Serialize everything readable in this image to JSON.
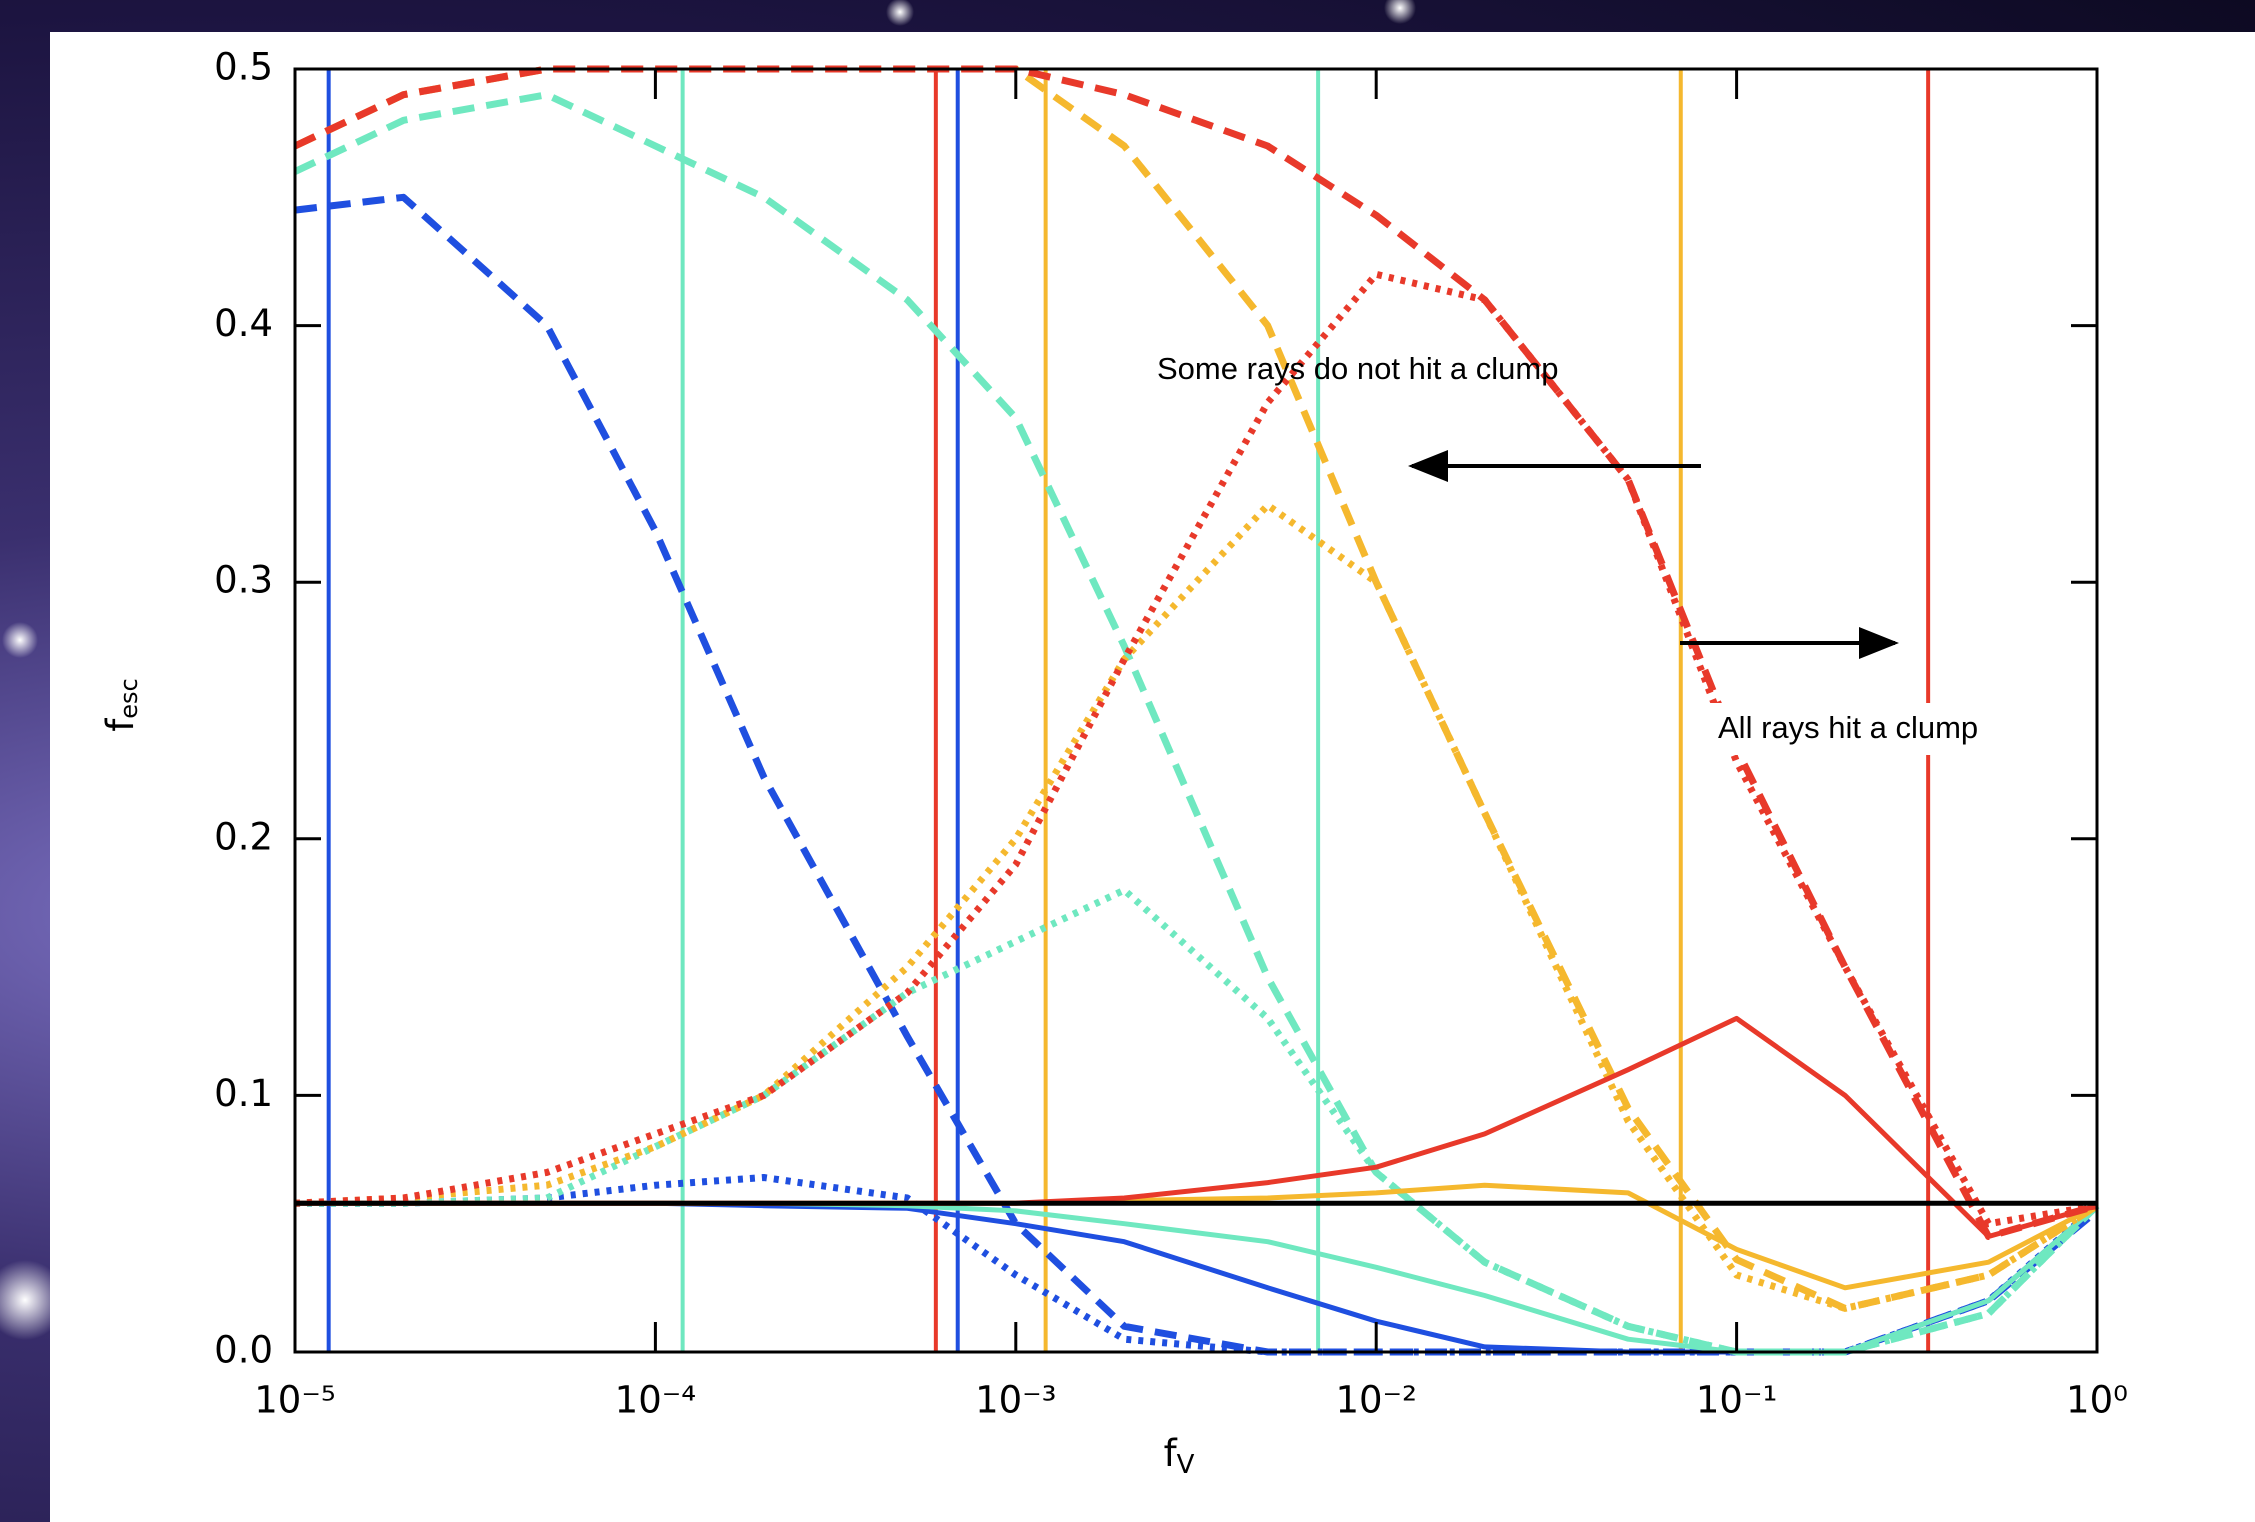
{
  "chart_data": {
    "type": "line",
    "ylabel": "f",
    "ylabel_sub": "esc",
    "xlabel": "f",
    "xlabel_sub": "V",
    "xscale": "log",
    "xlim": [
      1e-05,
      1
    ],
    "ylim": [
      0,
      0.5
    ],
    "xticks": [
      {
        "value": 1e-05,
        "label": "10⁻⁵"
      },
      {
        "value": 0.0001,
        "label": "10⁻⁴"
      },
      {
        "value": 0.001,
        "label": "10⁻³"
      },
      {
        "value": 0.01,
        "label": "10⁻²"
      },
      {
        "value": 0.1,
        "label": "10⁻¹"
      },
      {
        "value": 1,
        "label": "10⁰"
      }
    ],
    "yticks": [
      {
        "value": 0,
        "label": "0.0"
      },
      0.1,
      0.2,
      0.3,
      0.4,
      0.5
    ],
    "grid": false,
    "x": [
      1e-05,
      2e-05,
      5e-05,
      0.0001,
      0.0002,
      0.0005,
      0.001,
      0.002,
      0.005,
      0.01,
      0.02,
      0.05,
      0.1,
      0.2,
      0.5,
      1
    ],
    "series": [
      {
        "color": "#1f4fe0",
        "style": "dashed",
        "values": [
          0.445,
          0.45,
          0.4,
          0.32,
          0.224,
          0.123,
          0.05,
          0.01,
          0,
          0,
          0,
          0,
          0,
          0,
          0.02,
          0.055
        ]
      },
      {
        "color": "#1f4fe0",
        "style": "dotted",
        "values": [
          0.058,
          0.058,
          0.06,
          0.065,
          0.068,
          0.06,
          0.03,
          0.005,
          0,
          0,
          0,
          0,
          0,
          0,
          0.02,
          0.057
        ]
      },
      {
        "color": "#1f4fe0",
        "style": "solid",
        "values": [
          0.058,
          0.058,
          0.058,
          0.058,
          0.057,
          0.056,
          0.05,
          0.043,
          0.025,
          0.012,
          0.002,
          0,
          0,
          0,
          0.02,
          0.057
        ]
      },
      {
        "color": "#6fe8c0",
        "style": "dashed",
        "values": [
          0.46,
          0.48,
          0.49,
          0.47,
          0.45,
          0.41,
          0.364,
          0.275,
          0.146,
          0.07,
          0.035,
          0.01,
          0,
          0,
          0.015,
          0.057
        ]
      },
      {
        "color": "#6fe8c0",
        "style": "dotted",
        "values": [
          0.058,
          0.058,
          0.06,
          0.08,
          0.1,
          0.14,
          0.16,
          0.18,
          0.13,
          0.07,
          0.035,
          0.01,
          0,
          0,
          0.015,
          0.057
        ]
      },
      {
        "color": "#6fe8c0",
        "style": "solid",
        "values": [
          0.058,
          0.058,
          0.058,
          0.058,
          0.058,
          0.057,
          0.055,
          0.05,
          0.043,
          0.033,
          0.022,
          0.005,
          0,
          0,
          0.02,
          0.057
        ]
      },
      {
        "color": "#f5b82e",
        "style": "dashed",
        "values": [
          0.47,
          0.49,
          0.5,
          0.5,
          0.5,
          0.5,
          0.5,
          0.47,
          0.4,
          0.3,
          0.21,
          0.095,
          0.036,
          0.017,
          0.03,
          0.057
        ]
      },
      {
        "color": "#f5b82e",
        "style": "dotted",
        "values": [
          0.058,
          0.06,
          0.065,
          0.08,
          0.1,
          0.15,
          0.2,
          0.27,
          0.33,
          0.3,
          0.21,
          0.09,
          0.03,
          0.017,
          0.03,
          0.057
        ]
      },
      {
        "color": "#f5b82e",
        "style": "solid",
        "values": [
          0.058,
          0.058,
          0.058,
          0.058,
          0.058,
          0.058,
          0.058,
          0.059,
          0.06,
          0.062,
          0.065,
          0.062,
          0.04,
          0.025,
          0.035,
          0.057
        ]
      },
      {
        "color": "#e8392a",
        "style": "dashed",
        "values": [
          0.47,
          0.49,
          0.5,
          0.5,
          0.5,
          0.5,
          0.5,
          0.49,
          0.47,
          0.443,
          0.41,
          0.34,
          0.235,
          0.15,
          0.045,
          0.057
        ]
      },
      {
        "color": "#e8392a",
        "style": "dotted",
        "values": [
          0.058,
          0.06,
          0.07,
          0.085,
          0.1,
          0.14,
          0.19,
          0.27,
          0.37,
          0.42,
          0.41,
          0.34,
          0.23,
          0.15,
          0.05,
          0.057
        ]
      },
      {
        "color": "#e8392a",
        "style": "solid",
        "values": [
          0.058,
          0.058,
          0.058,
          0.058,
          0.058,
          0.058,
          0.058,
          0.06,
          0.066,
          0.072,
          0.085,
          0.11,
          0.13,
          0.1,
          0.045,
          0.057
        ]
      },
      {
        "color": "#000000",
        "style": "solid",
        "values": [
          0.058,
          0.058,
          0.058,
          0.058,
          0.058,
          0.058,
          0.058,
          0.058,
          0.058,
          0.058,
          0.058,
          0.058,
          0.058,
          0.058,
          0.058,
          0.058
        ]
      }
    ],
    "vlines": [
      {
        "x": 1.24e-05,
        "color": "#1f4fe0"
      },
      {
        "x": 0.00069,
        "color": "#1f4fe0"
      },
      {
        "x": 0.000119,
        "color": "#6fe8c0"
      },
      {
        "x": 0.0069,
        "color": "#6fe8c0"
      },
      {
        "x": 0.00121,
        "color": "#f5b82e"
      },
      {
        "x": 0.07,
        "color": "#f5b82e"
      },
      {
        "x": 0.0006,
        "color": "#e8392a"
      },
      {
        "x": 0.34,
        "color": "#e8392a"
      }
    ],
    "annotations": [
      "Some rays do not hit a clump",
      "All rays hit a clump"
    ]
  }
}
